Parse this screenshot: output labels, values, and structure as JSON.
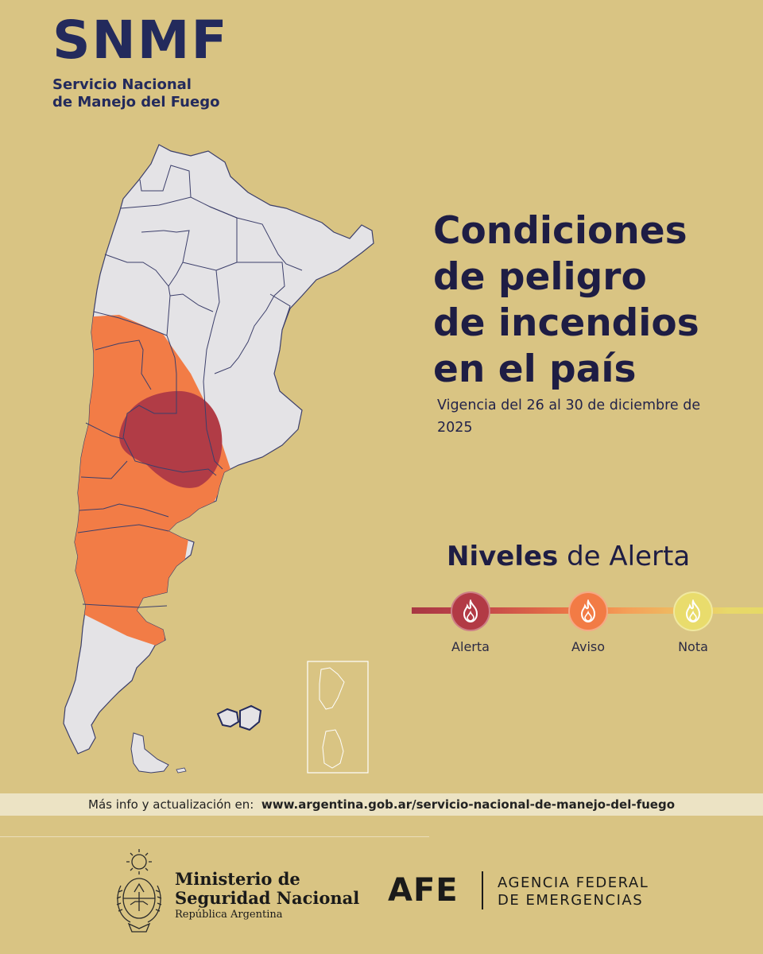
{
  "brand": {
    "acronym": "SNMF",
    "line1": "Servicio Nacional",
    "line2": "de Manejo del Fuego"
  },
  "title": {
    "line1": "Condiciones",
    "line2": "de peligro",
    "line3": "de incendios",
    "line4": "en el país"
  },
  "validity": "Vigencia del 26 al 30 de diciembre de 2025",
  "levels": {
    "title_bold": "Niveles",
    "title_rest": " de Alerta",
    "items": [
      {
        "label": "Alerta",
        "color": "#b23a45",
        "icon": "fire-icon"
      },
      {
        "label": "Aviso",
        "color": "#f27b45",
        "icon": "fire-icon"
      },
      {
        "label": "Nota",
        "color": "#e9dc6c",
        "icon": "fire-icon"
      }
    ]
  },
  "map": {
    "colors": {
      "land": "#e4e3e6",
      "alerta": "#b13c46",
      "aviso": "#f27c46",
      "border": "#3c3f6b"
    }
  },
  "info": {
    "prefix": "Más info y actualización en:",
    "url": "www.argentina.gob.ar/servicio-nacional-de-manejo-del-fuego"
  },
  "footer": {
    "ministry_line1": "Ministerio de",
    "ministry_line2": "Seguridad Nacional",
    "ministry_line3": "República Argentina",
    "afe_acronym": "AFE",
    "afe_line1": "AGENCIA FEDERAL",
    "afe_line2": "DE EMERGENCIAS"
  }
}
